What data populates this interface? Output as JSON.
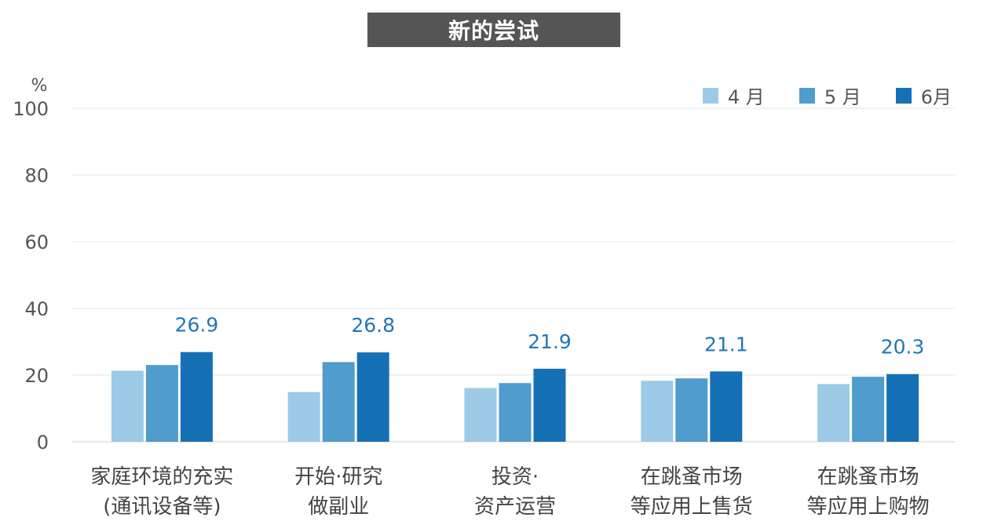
{
  "chart_data": {
    "type": "bar",
    "title": "新的尝试",
    "ylabel": "%",
    "ylim": [
      0,
      100
    ],
    "yticks": [
      0,
      20,
      40,
      60,
      80,
      100
    ],
    "grid": true,
    "legend_position": "top-right",
    "categories": [
      [
        "家庭环境的充实",
        "(通讯设备等)"
      ],
      [
        "开始·研究",
        "做副业"
      ],
      [
        "投资·",
        "资产运营"
      ],
      [
        "在跳蚤市场",
        "等应用上售货"
      ],
      [
        "在跳蚤市场",
        "等应用上购物"
      ]
    ],
    "series": [
      {
        "name": "4 月",
        "color": "#9dcae6",
        "values": [
          21.3,
          14.9,
          16.1,
          18.3,
          17.3
        ]
      },
      {
        "name": "5 月",
        "color": "#4f9ccd",
        "values": [
          23.0,
          23.9,
          17.6,
          19.0,
          19.5
        ]
      },
      {
        "name": "6月",
        "color": "#1670b5",
        "values": [
          26.9,
          26.8,
          21.9,
          21.1,
          20.3
        ]
      }
    ],
    "data_labels": {
      "series_index": 2,
      "color": "#1f78b8"
    }
  }
}
